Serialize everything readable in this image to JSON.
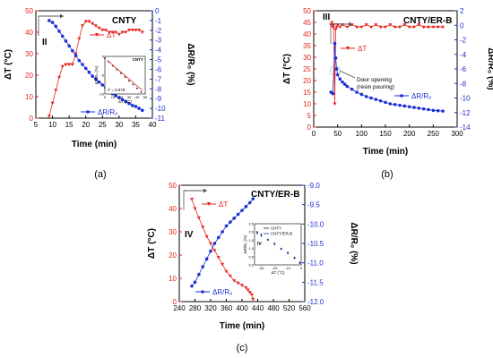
{
  "colors": {
    "delta_t": "#e8221c",
    "delta_r": "#1b2fd4",
    "axis": "#000000",
    "frame": "#888888",
    "arrow": "#555555",
    "black_series": "#111111"
  },
  "chart_data": [
    {
      "type": "line",
      "panel_label": "(a)",
      "title": "CNTY",
      "xlabel": "Time (min)",
      "ylabel_left": "ΔT (°C)",
      "ylabel_right": "ΔR/R₀ (%)",
      "xlim": [
        5,
        40
      ],
      "ylim": [
        0,
        50
      ],
      "ylim_right": [
        -11,
        0
      ],
      "x_ticks": [
        "5",
        "10",
        "15",
        "20",
        "25",
        "30",
        "35",
        "40"
      ],
      "y_ticks": [
        "0",
        "10",
        "20",
        "30",
        "40",
        "50"
      ],
      "y_right_ticks": [
        "0",
        "-1",
        "-2",
        "-3",
        "-4",
        "-5",
        "-6",
        "-7",
        "-8",
        "-9",
        "-10",
        "-11"
      ],
      "phase_label": "II",
      "series": [
        {
          "name": "ΔT",
          "axis": "left",
          "x": [
            9,
            10,
            11,
            12,
            13,
            14,
            15,
            16,
            17,
            18,
            19,
            20,
            21,
            22,
            23,
            24,
            25,
            26,
            27,
            28,
            29,
            30,
            31,
            32,
            33,
            34,
            35,
            36,
            37
          ],
          "y": [
            1,
            7,
            13,
            19,
            24,
            25,
            25,
            25,
            30,
            37,
            43,
            45,
            45,
            44,
            43,
            42,
            41,
            41,
            40,
            40,
            40,
            39,
            40,
            40,
            41,
            41,
            41,
            41,
            40
          ]
        },
        {
          "name": "ΔR/R₀",
          "axis": "right",
          "x": [
            9,
            10,
            11,
            12,
            13,
            14,
            15,
            16,
            17,
            18,
            19,
            20,
            21,
            22,
            23,
            24,
            25,
            26,
            27,
            28,
            29,
            30,
            31,
            32,
            33,
            34,
            35,
            36,
            37
          ],
          "y": [
            -1.0,
            -1.2,
            -1.6,
            -2.1,
            -2.6,
            -3.1,
            -3.6,
            -4.1,
            -4.6,
            -5.1,
            -5.5,
            -5.9,
            -6.3,
            -6.7,
            -7.0,
            -7.3,
            -7.6,
            -7.9,
            -8.2,
            -8.5,
            -8.7,
            -8.9,
            -9.1,
            -9.3,
            -9.5,
            -9.7,
            -9.8,
            -10.0,
            -10.2
          ]
        }
      ],
      "inset": {
        "title": "CNTY",
        "annotation": "r² = 0.978",
        "xlabel": "ΔT (°C)",
        "ylabel": "ΔR/R₀ (%)",
        "xlim": [
          0,
          50
        ],
        "ylim": [
          -10,
          0
        ],
        "x_ticks": [
          "0",
          "10",
          "20",
          "30",
          "40",
          "50"
        ],
        "y_ticks": [
          "0",
          "-5",
          "-10"
        ],
        "series": [
          {
            "x": [
              0,
              5,
              10,
              15,
              20,
              25,
              30,
              35,
              40,
              45
            ],
            "y": [
              -0.5,
              -1.5,
              -2.5,
              -3.5,
              -4.5,
              -5.5,
              -6.5,
              -7.5,
              -8.5,
              -9.5
            ]
          }
        ]
      }
    },
    {
      "type": "line",
      "panel_label": "(b)",
      "title": "CNTY/ER-B",
      "xlabel": "Time (min)",
      "ylabel_left": "ΔT (°C)",
      "ylabel_right": "ΔR/R₀ (%)",
      "xlim": [
        0,
        300
      ],
      "ylim": [
        0,
        50
      ],
      "ylim_right": [
        -14,
        2
      ],
      "x_ticks": [
        "0",
        "50",
        "100",
        "150",
        "200",
        "250",
        "300"
      ],
      "y_ticks": [
        "0",
        "5",
        "10",
        "15",
        "20",
        "25",
        "30",
        "35",
        "40",
        "45",
        "50"
      ],
      "y_right_ticks": [
        "2",
        "0",
        "-2",
        "-4",
        "-6",
        "-8",
        "-10",
        "-12",
        "-14"
      ],
      "phase_label": "III",
      "annotation": "Door opening (resin pouring)",
      "series": [
        {
          "name": "ΔT",
          "axis": "left",
          "x": [
            36,
            38,
            40,
            42,
            44,
            46,
            48,
            50,
            55,
            60,
            70,
            80,
            90,
            100,
            110,
            120,
            130,
            140,
            150,
            160,
            170,
            180,
            190,
            200,
            210,
            220,
            230,
            240,
            250,
            260,
            270
          ],
          "y": [
            44,
            45,
            43,
            44,
            10,
            42,
            43,
            44,
            43,
            44,
            43,
            44,
            43,
            43,
            44,
            43,
            44,
            43,
            43,
            44,
            43,
            43,
            44,
            43,
            43,
            44,
            43,
            43,
            43,
            43,
            43
          ]
        },
        {
          "name": "ΔR/R₀",
          "axis": "right",
          "x": [
            36,
            40,
            44,
            46,
            48,
            50,
            55,
            60,
            65,
            70,
            80,
            90,
            100,
            110,
            120,
            130,
            140,
            150,
            160,
            170,
            180,
            190,
            200,
            210,
            220,
            230,
            240,
            250,
            260,
            270
          ],
          "y": [
            -9.2,
            -9.4,
            -2.5,
            -4.5,
            -6.0,
            -6.8,
            -7.4,
            -7.8,
            -8.1,
            -8.4,
            -8.8,
            -9.2,
            -9.5,
            -9.8,
            -10.0,
            -10.2,
            -10.4,
            -10.6,
            -10.8,
            -10.9,
            -11.0,
            -11.1,
            -11.2,
            -11.3,
            -11.4,
            -11.5,
            -11.6,
            -11.7,
            -11.75,
            -11.8
          ]
        }
      ]
    },
    {
      "type": "line",
      "panel_label": "(c)",
      "title": "CNTY/ER-B",
      "xlabel": "Time (min)",
      "ylabel_left": "ΔT (°C)",
      "ylabel_right": "ΔR/R₀ (%)",
      "xlim": [
        240,
        560
      ],
      "ylim": [
        0,
        50
      ],
      "ylim_right": [
        -12,
        -9
      ],
      "x_ticks": [
        "240",
        "280",
        "320",
        "360",
        "400",
        "440",
        "480",
        "520",
        "560"
      ],
      "y_ticks": [
        "0",
        "10",
        "20",
        "30",
        "40",
        "50"
      ],
      "y_right_ticks": [
        "-9.0",
        "-9.5",
        "-10.0",
        "-10.5",
        "-11.0",
        "-11.5",
        "-12.0"
      ],
      "phase_label": "IV",
      "series": [
        {
          "name": "ΔT",
          "axis": "left",
          "x": [
            272,
            280,
            290,
            300,
            310,
            320,
            330,
            340,
            350,
            360,
            370,
            380,
            390,
            400,
            410,
            415,
            420,
            425,
            428
          ],
          "y": [
            44,
            40,
            36,
            32,
            28,
            25,
            22,
            19,
            16,
            13,
            11,
            9,
            8,
            7,
            6,
            5,
            4,
            3,
            1
          ]
        },
        {
          "name": "ΔR/R₀",
          "axis": "right",
          "x": [
            272,
            280,
            290,
            300,
            310,
            320,
            330,
            340,
            350,
            360,
            370,
            380,
            390,
            400,
            410,
            420,
            428
          ],
          "y": [
            -11.6,
            -11.5,
            -11.3,
            -11.1,
            -10.9,
            -10.7,
            -10.5,
            -10.35,
            -10.2,
            -10.05,
            -9.95,
            -9.85,
            -9.75,
            -9.65,
            -9.55,
            -9.45,
            -9.35
          ]
        }
      ],
      "inset": {
        "phase_label": "IV",
        "xlabel": "ΔT (°C)",
        "ylabel": "ΔR/R₀ (%)",
        "xlim": [
          -35,
          0
        ],
        "ylim": [
          0,
          2.5
        ],
        "x_ticks": [
          "-30",
          "-20",
          "-10",
          "0"
        ],
        "y_ticks": [
          "0.0",
          "0.5",
          "1.0",
          "1.5",
          "2.0",
          "2.5"
        ],
        "legend": [
          "CNTY",
          "CNTY/ER-B"
        ],
        "series": [
          {
            "name": "CNTY",
            "x": [
              -33,
              -30,
              -25,
              -20,
              -15,
              -10,
              -5,
              -1
            ],
            "y": [
              2.0,
              1.85,
              1.55,
              1.3,
              1.0,
              0.75,
              0.45,
              0.15
            ]
          },
          {
            "name": "CNTY/ER-B",
            "x": [
              -33,
              -30,
              -25,
              -20,
              -15,
              -10,
              -5,
              -1
            ],
            "y": [
              1.9,
              1.75,
              1.5,
              1.25,
              0.95,
              0.7,
              0.4,
              0.1
            ]
          }
        ]
      }
    }
  ]
}
